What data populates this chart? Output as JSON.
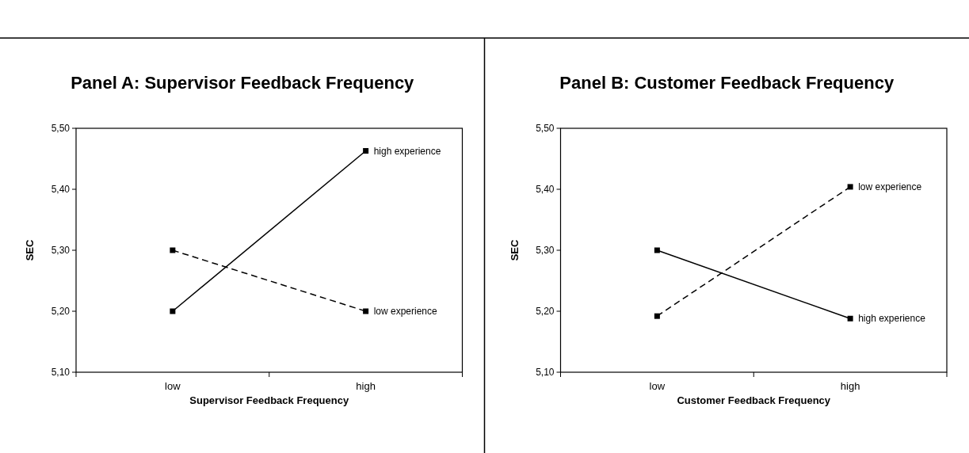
{
  "chart_data": [
    {
      "type": "line",
      "title": "Panel A: Supervisor Feedback Frequency",
      "xlabel": "Supervisor Feedback Frequency",
      "ylabel": "SEC",
      "categories": [
        "low",
        "high"
      ],
      "ylim": [
        5.1,
        5.5
      ],
      "yticks": [
        {
          "value": 5.1,
          "label": "5,10"
        },
        {
          "value": 5.2,
          "label": "5,20"
        },
        {
          "value": 5.3,
          "label": "5,30"
        },
        {
          "value": 5.4,
          "label": "5,40"
        },
        {
          "value": 5.5,
          "label": "5,50"
        }
      ],
      "grid": false,
      "marker": "square",
      "series": [
        {
          "name": "high experience",
          "color": "#000000",
          "line_style": "solid",
          "values": [
            5.2,
            5.463
          ]
        },
        {
          "name": "low experience",
          "color": "#000000",
          "line_style": "dashed",
          "values": [
            5.3,
            5.2
          ]
        }
      ]
    },
    {
      "type": "line",
      "title": "Panel B: Customer Feedback Frequency",
      "xlabel": "Customer Feedback Frequency",
      "ylabel": "SEC",
      "categories": [
        "low",
        "high"
      ],
      "ylim": [
        5.1,
        5.5
      ],
      "yticks": [
        {
          "value": 5.1,
          "label": "5,10"
        },
        {
          "value": 5.2,
          "label": "5,20"
        },
        {
          "value": 5.3,
          "label": "5,30"
        },
        {
          "value": 5.4,
          "label": "5,40"
        },
        {
          "value": 5.5,
          "label": "5,50"
        }
      ],
      "grid": false,
      "marker": "square",
      "series": [
        {
          "name": "low experience",
          "color": "#000000",
          "line_style": "dashed",
          "values": [
            5.192,
            5.404
          ]
        },
        {
          "name": "high experience",
          "color": "#000000",
          "line_style": "solid",
          "values": [
            5.3,
            5.188
          ]
        }
      ]
    }
  ]
}
